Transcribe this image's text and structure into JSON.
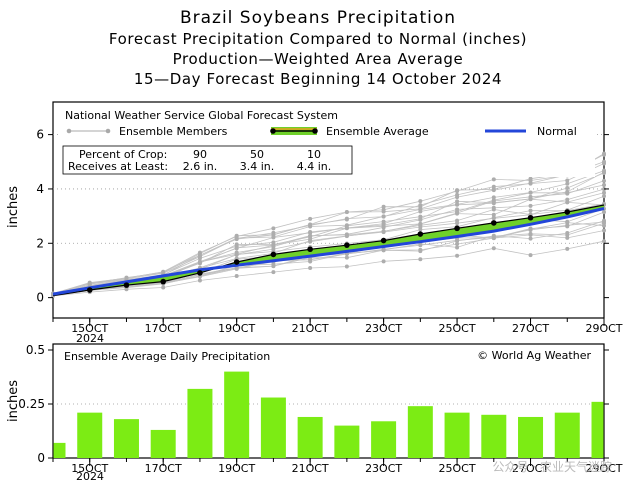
{
  "titles": {
    "main": "Brazil Soybeans Precipitation",
    "line2": "Forecast Precipitation Compared to Normal (inches)",
    "line3": "Production—Weighted Area Average",
    "line4": "15—Day Forecast Beginning 14 October 2024"
  },
  "watermark": "公众号 · 农业天气迷踪",
  "chart_data": [
    {
      "type": "line",
      "source": "National Weather Service Global Forecast System",
      "ylabel": "inches",
      "ylim": [
        -0.75,
        7.2
      ],
      "yticks": [
        0,
        2,
        4,
        6
      ],
      "x": [
        14,
        15,
        16,
        17,
        18,
        19,
        20,
        21,
        22,
        23,
        24,
        25,
        26,
        27,
        28,
        29
      ],
      "xticks": [
        15,
        17,
        19,
        21,
        23,
        25,
        27,
        29
      ],
      "xtick_labels": [
        "15OCT",
        "17OCT",
        "19OCT",
        "21OCT",
        "23OCT",
        "25OCT",
        "27OCT",
        "29OCT"
      ],
      "year_label": "2024",
      "legend": {
        "members": "Ensemble Members",
        "average": "Ensemble Average",
        "normal": "Normal"
      },
      "crop_table": {
        "row1_label": "Percent of Crop:",
        "row2_label": "Receives at Least:",
        "percents": [
          "90",
          "50",
          "10"
        ],
        "amounts": [
          "2.6 in.",
          "3.4 in.",
          "4.4 in."
        ]
      },
      "series": [
        {
          "name": "Ensemble Average",
          "values": [
            0.07,
            0.28,
            0.46,
            0.59,
            0.91,
            1.31,
            1.59,
            1.78,
            1.93,
            2.1,
            2.34,
            2.55,
            2.75,
            2.94,
            3.15,
            3.41
          ]
        },
        {
          "name": "Normal",
          "values": [
            0.13,
            0.36,
            0.58,
            0.8,
            1.02,
            1.19,
            1.36,
            1.53,
            1.7,
            1.88,
            2.06,
            2.25,
            2.45,
            2.7,
            2.97,
            3.28
          ]
        }
      ],
      "ensemble_spread": {
        "low": [
          0.05,
          0.15,
          0.25,
          0.35,
          0.45,
          0.6,
          0.75,
          0.85,
          0.95,
          1.05,
          1.15,
          1.25,
          1.35,
          1.45,
          1.55,
          1.65
        ],
        "high": [
          0.15,
          0.55,
          0.75,
          0.95,
          1.7,
          2.35,
          2.55,
          2.9,
          3.15,
          3.35,
          3.6,
          4.05,
          4.35,
          4.55,
          4.75,
          5.3
        ]
      }
    },
    {
      "type": "bar",
      "title": "Ensemble Average Daily Precipitation",
      "credit": "© World Ag Weather",
      "ylabel": "inches",
      "ylim": [
        0,
        0.5
      ],
      "yticks": [
        0,
        0.25,
        0.5
      ],
      "ytick_labels": [
        "0",
        "0.25",
        "0.5"
      ],
      "x": [
        14,
        15,
        16,
        17,
        18,
        19,
        20,
        21,
        22,
        23,
        24,
        25,
        26,
        27,
        28,
        29
      ],
      "values": [
        0.07,
        0.21,
        0.18,
        0.13,
        0.32,
        0.4,
        0.28,
        0.19,
        0.15,
        0.17,
        0.24,
        0.21,
        0.2,
        0.19,
        0.21,
        0.26
      ],
      "xticks": [
        15,
        17,
        19,
        21,
        23,
        25,
        27,
        29
      ],
      "xtick_labels": [
        "15OCT",
        "17OCT",
        "19OCT",
        "21OCT",
        "23OCT",
        "25OCT",
        "27OCT",
        "29OCT"
      ],
      "year_label": "2024"
    }
  ]
}
